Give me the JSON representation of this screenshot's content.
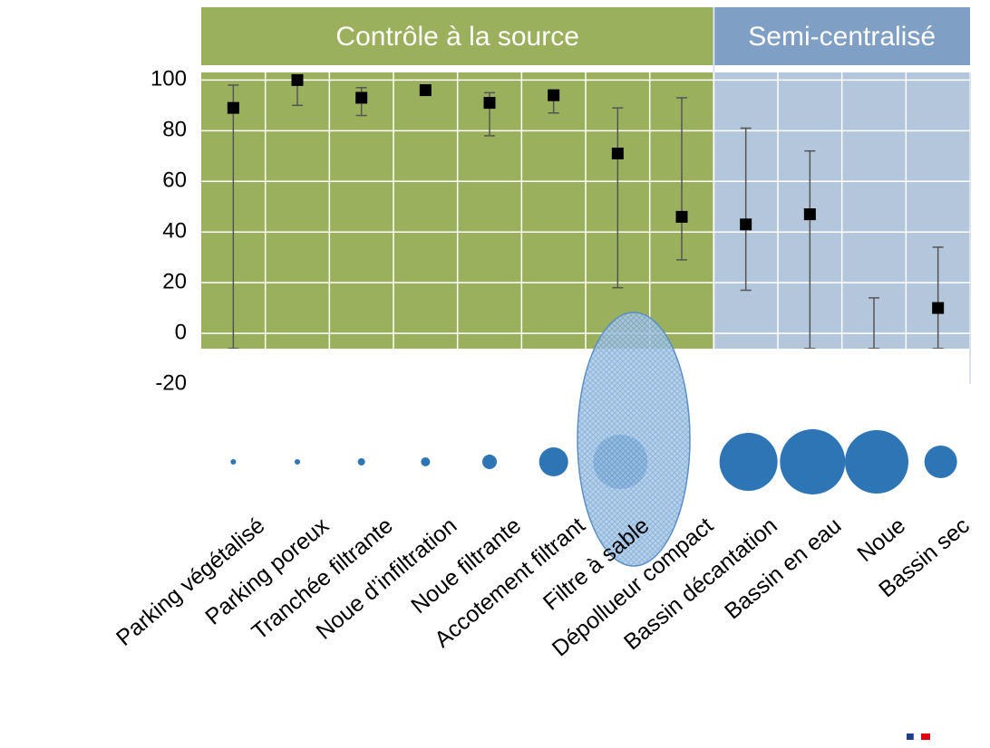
{
  "chart_data": {
    "type": "errorbubble",
    "groups": [
      {
        "label": "Contrôle à la source",
        "start": 0,
        "end": 7,
        "color": "#9bb05c",
        "header_color": "#9bb05c"
      },
      {
        "label": "Semi-centralisé",
        "start": 8,
        "end": 11,
        "color": "#b3c6dc",
        "header_color": "#7f9fc4"
      }
    ],
    "categories": [
      "Parking végétalisé",
      "Parking poreux",
      "Tranchée filtrante",
      "Noue d’infiltration",
      "Noue filtrante",
      "Accotement filtrant",
      "Filtre à sable",
      "Dépollueur compact",
      "Bassin décantation",
      "Bassin en eau",
      "Noue",
      "Bassin sec"
    ],
    "values": [
      89,
      100,
      93,
      96,
      91,
      94,
      71,
      46,
      43,
      47,
      null,
      10
    ],
    "error_high": [
      98,
      100,
      97,
      98,
      95,
      96,
      89,
      93,
      81,
      72,
      14,
      34
    ],
    "error_low": [
      -6,
      90,
      86,
      95,
      78,
      87,
      18,
      29,
      17,
      -6,
      -6,
      -6
    ],
    "bubble_sizes": [
      3,
      3,
      4,
      5,
      8,
      16,
      30,
      null,
      32,
      36,
      35,
      18
    ],
    "marker_color": "#000000",
    "bubble_color": "#2e75b6",
    "ylim": [
      -20,
      103
    ],
    "yticks": [
      100,
      80,
      60,
      40,
      20,
      0,
      -20
    ],
    "grid": true
  }
}
